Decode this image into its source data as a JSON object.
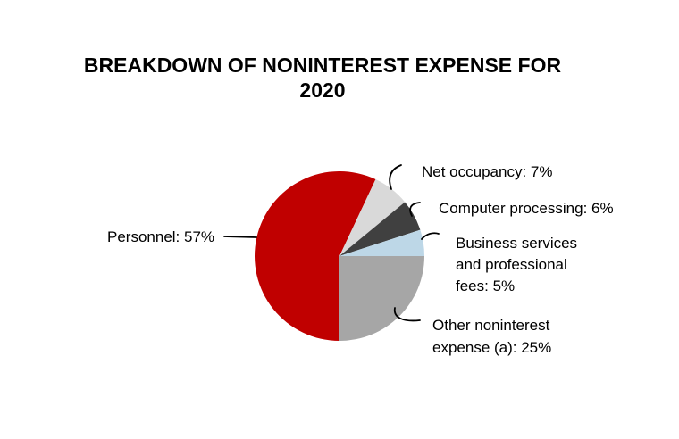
{
  "title": {
    "line1": "BREAKDOWN OF NONINTEREST EXPENSE FOR",
    "line2": "2020"
  },
  "chart_data": {
    "type": "pie",
    "title": "BREAKDOWN OF NONINTEREST EXPENSE FOR 2020",
    "unit": "%",
    "start_angle_clockwise_from_top": 180,
    "direction": "clockwise",
    "legend_position": "none",
    "slices": [
      {
        "label": "Personnel",
        "value": 57,
        "color": "#C00000",
        "display": "Personnel: 57%"
      },
      {
        "label": "Net occupancy",
        "value": 7,
        "color": "#D9D9D9",
        "display": "Net occupancy: 7%"
      },
      {
        "label": "Computer processing",
        "value": 6,
        "color": "#404040",
        "display": "Computer processing: 6%"
      },
      {
        "label": "Business services and professional fees",
        "value": 5,
        "color": "#BDD7E7",
        "display": "Business services and professional fees: 5%"
      },
      {
        "label": "Other noninterest expense (a)",
        "value": 25,
        "color": "#A6A6A6",
        "display": "Other noninterest expense (a): 25%"
      }
    ]
  },
  "callouts": {
    "personnel": "Personnel: 57%",
    "net_occupancy": "Net occupancy: 7%",
    "computer_processing": "Computer processing: 6%",
    "business_services": [
      "Business services",
      "and professional",
      "fees: 5%"
    ],
    "other": [
      "Other noninterest",
      "expense (a): 25%"
    ]
  }
}
